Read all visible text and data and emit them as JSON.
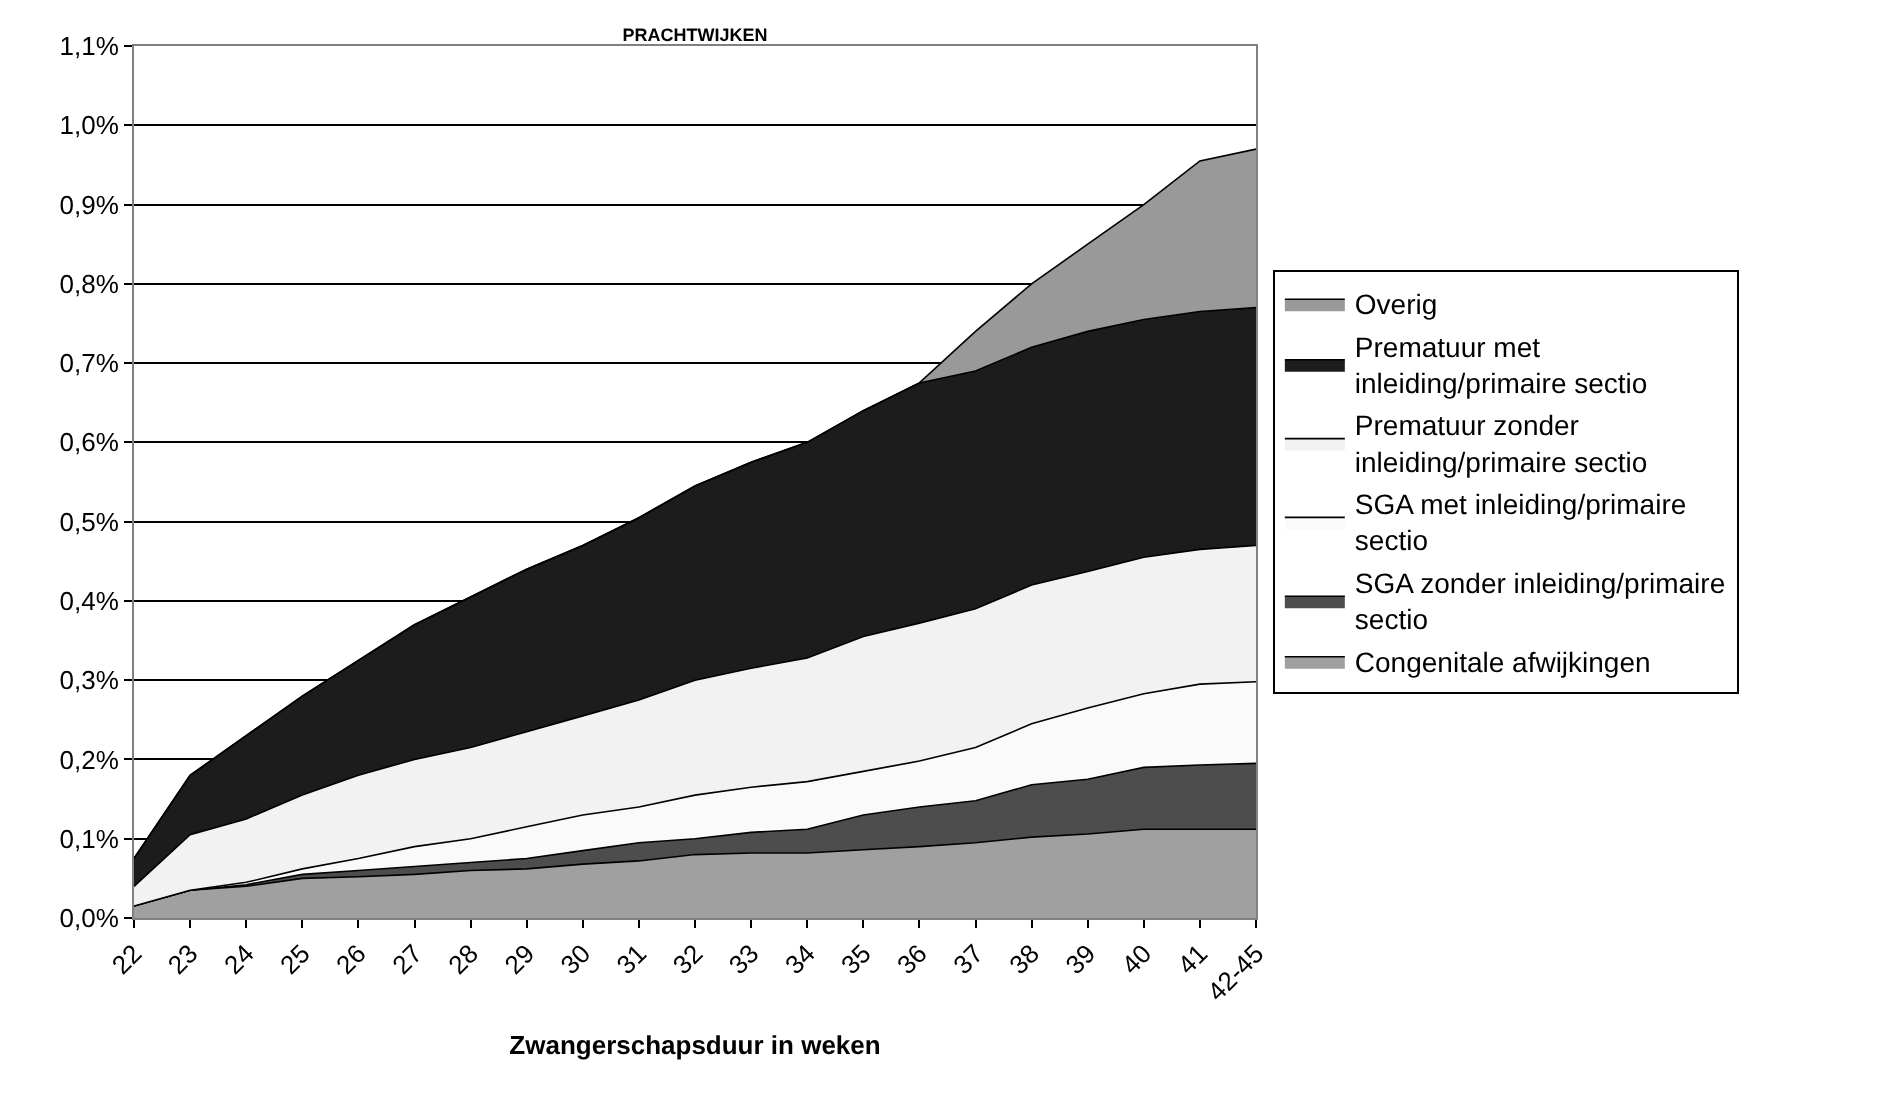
{
  "chart_data": {
    "type": "area",
    "title": "PRACHTWIJKEN",
    "xlabel": "Zwangerschapsduur in weken",
    "stacked": true,
    "categories": [
      "22",
      "23",
      "24",
      "25",
      "26",
      "27",
      "28",
      "29",
      "30",
      "31",
      "32",
      "33",
      "34",
      "35",
      "36",
      "37",
      "38",
      "39",
      "40",
      "41",
      "42-45"
    ],
    "series": [
      {
        "name": "Congenitale afwijkingen",
        "color": "#a0a0a0",
        "values": [
          0.015,
          0.035,
          0.04,
          0.05,
          0.052,
          0.055,
          0.06,
          0.062,
          0.068,
          0.072,
          0.08,
          0.082,
          0.082,
          0.086,
          0.09,
          0.095,
          0.102,
          0.106,
          0.112,
          0.112,
          0.112
        ]
      },
      {
        "name": "SGA zonder inleiding/primaire sectio",
        "color": "#4d4d4d",
        "values": [
          0,
          0,
          0.002,
          0.005,
          0.008,
          0.01,
          0.01,
          0.013,
          0.017,
          0.023,
          0.02,
          0.026,
          0.03,
          0.044,
          0.05,
          0.053,
          0.066,
          0.069,
          0.078,
          0.081,
          0.083
        ]
      },
      {
        "name": "SGA met inleiding/primaire sectio",
        "color": "#fafafa",
        "values": [
          0,
          0,
          0.003,
          0.007,
          0.015,
          0.025,
          0.03,
          0.04,
          0.045,
          0.045,
          0.055,
          0.057,
          0.06,
          0.055,
          0.058,
          0.067,
          0.077,
          0.09,
          0.093,
          0.102,
          0.103
        ]
      },
      {
        "name": "Prematuur zonder inleiding/primaire sectio",
        "color": "#f2f2f2",
        "values": [
          0.025,
          0.07,
          0.08,
          0.093,
          0.105,
          0.11,
          0.115,
          0.12,
          0.125,
          0.135,
          0.145,
          0.15,
          0.156,
          0.17,
          0.174,
          0.175,
          0.175,
          0.172,
          0.172,
          0.17,
          0.172
        ]
      },
      {
        "name": "Prematuur met inleiding/primaire sectio",
        "color": "#1c1c1c",
        "values": [
          0.035,
          0.075,
          0.105,
          0.125,
          0.145,
          0.17,
          0.19,
          0.205,
          0.215,
          0.23,
          0.245,
          0.26,
          0.272,
          0.285,
          0.303,
          0.3,
          0.3,
          0.303,
          0.3,
          0.3,
          0.3
        ]
      },
      {
        "name": "Overig",
        "color": "#999999",
        "values": [
          0,
          0,
          0,
          0,
          0,
          0,
          0,
          0,
          0,
          0,
          0,
          0,
          0,
          0,
          0,
          0.05,
          0.08,
          0.11,
          0.145,
          0.19,
          0.2
        ]
      }
    ],
    "ylim": [
      0,
      1.1
    ],
    "yticks": [
      {
        "value": 0,
        "label": "0,0%"
      },
      {
        "value": 0.1,
        "label": "0,1%"
      },
      {
        "value": 0.2,
        "label": "0,2%"
      },
      {
        "value": 0.3,
        "label": "0,3%"
      },
      {
        "value": 0.4,
        "label": "0,4%"
      },
      {
        "value": 0.5,
        "label": "0,5%"
      },
      {
        "value": 0.6,
        "label": "0,6%"
      },
      {
        "value": 0.7,
        "label": "0,7%"
      },
      {
        "value": 0.8,
        "label": "0,8%"
      },
      {
        "value": 0.9,
        "label": "0,9%"
      },
      {
        "value": 1.0,
        "label": "1,0%"
      },
      {
        "value": 1.1,
        "label": "1,1%"
      }
    ],
    "grid": "y",
    "legend": "right"
  }
}
